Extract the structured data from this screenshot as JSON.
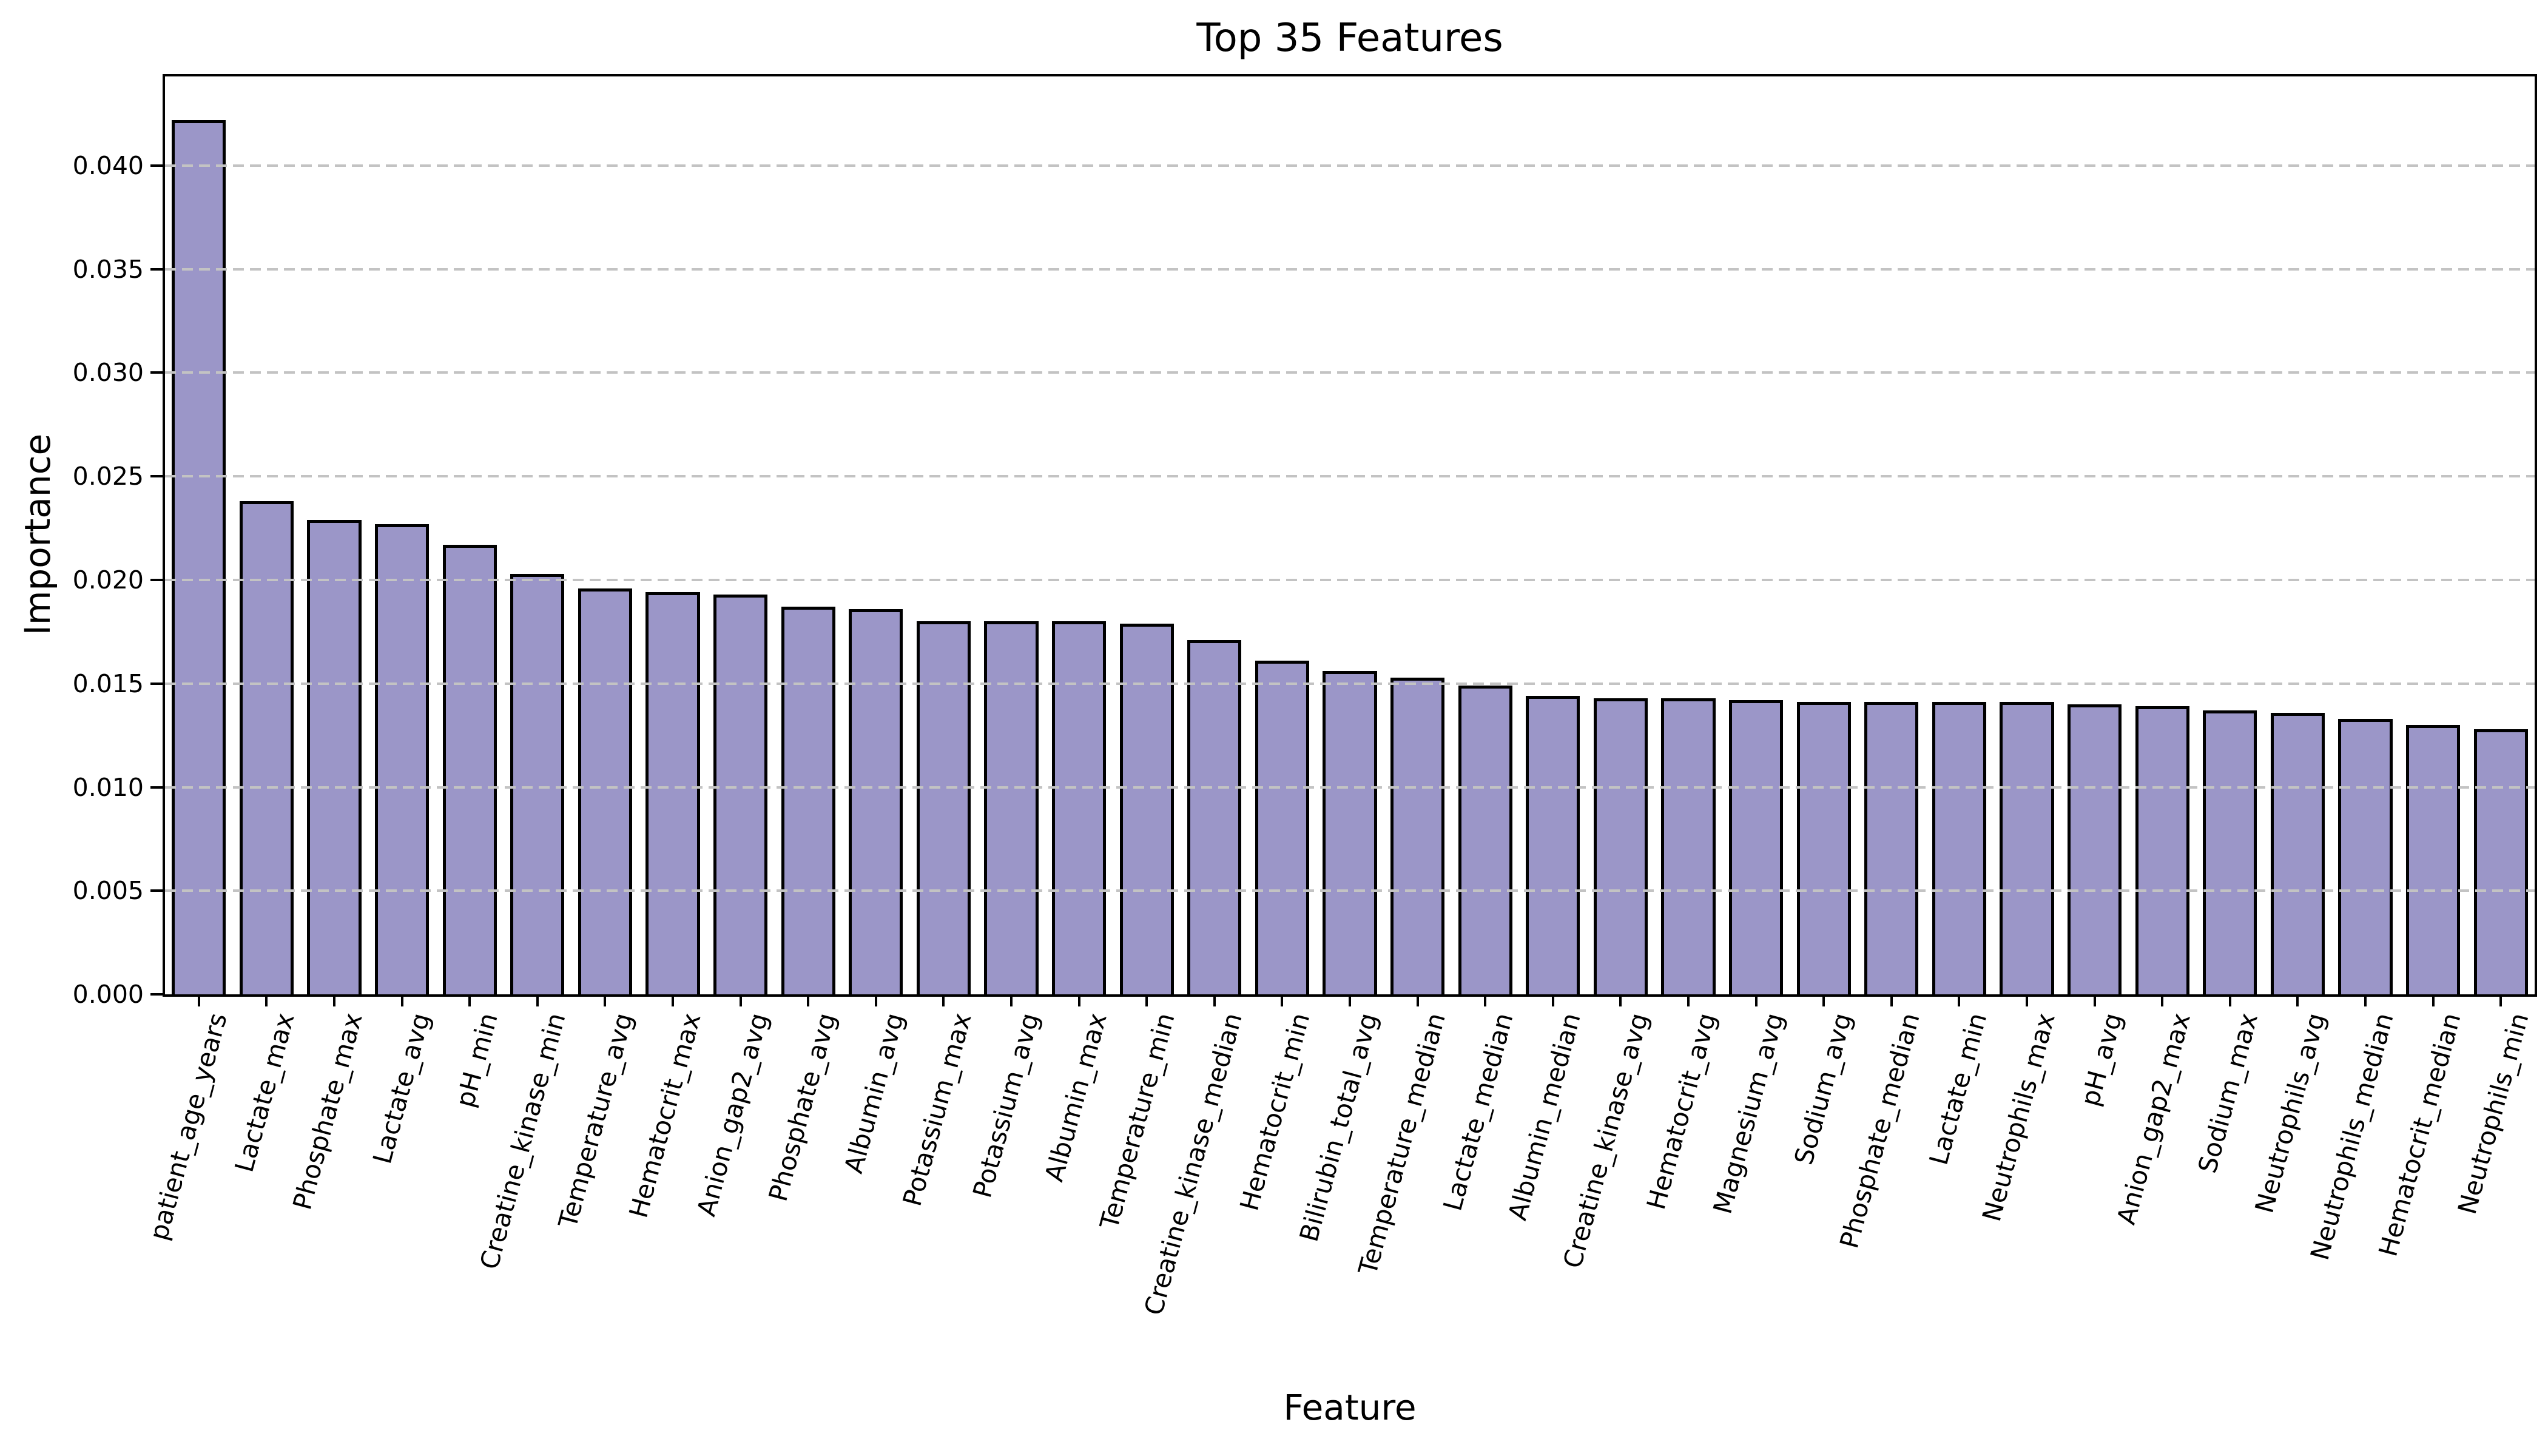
{
  "chart_data": {
    "type": "bar",
    "title": "Top 35 Features",
    "xlabel": "Feature",
    "ylabel": "Importance",
    "categories": [
      "patient_age_years",
      "Lactate_max",
      "Phosphate_max",
      "Lactate_avg",
      "pH_min",
      "Creatine_kinase_min",
      "Temperature_avg",
      "Hematocrit_max",
      "Anion_gap2_avg",
      "Phosphate_avg",
      "Albumin_avg",
      "Potassium_max",
      "Potassium_avg",
      "Albumin_max",
      "Temperature_min",
      "Creatine_kinase_median",
      "Hematocrit_min",
      "Bilirubin_total_avg",
      "Temperature_median",
      "Lactate_median",
      "Albumin_median",
      "Creatine_kinase_avg",
      "Hematocrit_avg",
      "Magnesium_avg",
      "Sodium_avg",
      "Phosphate_median",
      "Lactate_min",
      "Neutrophils_max",
      "pH_avg",
      "Anion_gap2_max",
      "Sodium_max",
      "Neutrophils_avg",
      "Neutrophils_median",
      "Hematocrit_median",
      "Neutrophils_min"
    ],
    "values": [
      0.0422,
      0.0238,
      0.0229,
      0.0227,
      0.0217,
      0.0203,
      0.0196,
      0.0194,
      0.0193,
      0.0187,
      0.0186,
      0.018,
      0.018,
      0.018,
      0.0179,
      0.0171,
      0.0161,
      0.0156,
      0.0153,
      0.0149,
      0.0144,
      0.0143,
      0.0143,
      0.0142,
      0.0141,
      0.0141,
      0.0141,
      0.0141,
      0.014,
      0.0139,
      0.0137,
      0.0136,
      0.0133,
      0.013,
      0.0128
    ],
    "ylim": [
      0,
      0.0443
    ],
    "yticks": [
      0,
      0.005,
      0.01,
      0.015,
      0.02,
      0.025,
      0.03,
      0.035,
      0.04
    ],
    "ytick_labels": [
      "0.000",
      "0.005",
      "0.010",
      "0.015",
      "0.020",
      "0.025",
      "0.030",
      "0.035",
      "0.040"
    ],
    "grid": "horizontal-dashed-over-bars",
    "legend": "none",
    "bar_color": "#9b96c8",
    "bar_edge_color": "#000000",
    "grid_color": "#c3c3c3",
    "background": "#ffffff"
  }
}
